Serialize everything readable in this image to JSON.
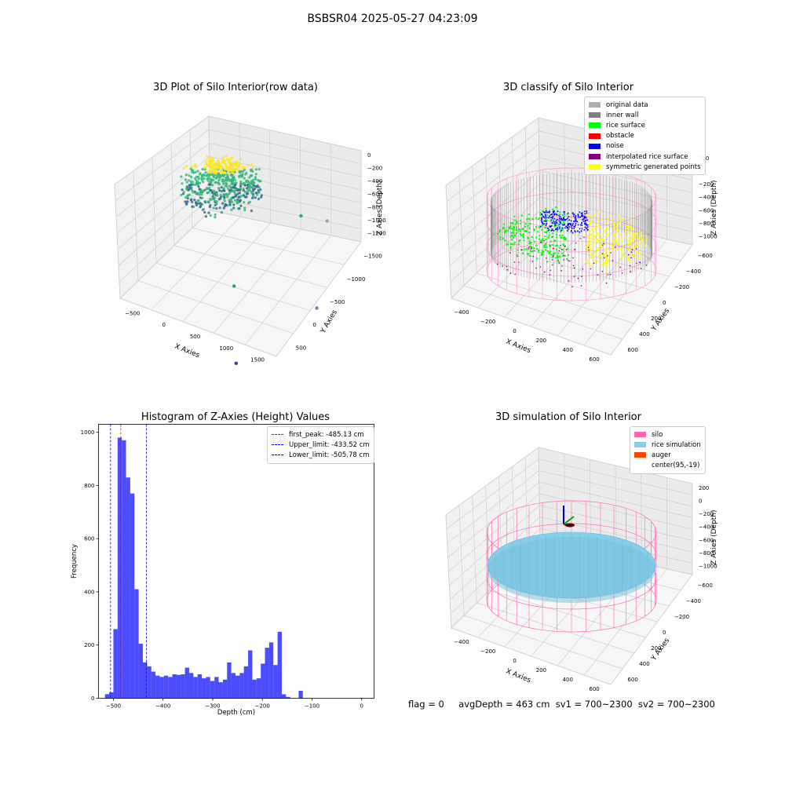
{
  "suptitle": "BSBSR04 2025-05-27 04:23:09",
  "footer": {
    "flag": "flag = 0",
    "avg": "avgDepth = 463 cm",
    "sv1": "sv1 = 700~2300",
    "sv2": "sv2 = 700~2300"
  },
  "chart_data": [
    {
      "type": "scatter",
      "title": "3D Plot of Silo Interior(row data)",
      "xlabel": "X Axies",
      "ylabel": "Y Axies",
      "zlabel": "Z Axies (Depth)",
      "x_ticks": [
        "−500",
        "0",
        "500",
        "1000",
        "1500"
      ],
      "y_ticks": [
        "500",
        "0",
        "−500",
        "−1000",
        "−1500"
      ],
      "z_ticks": [
        "0",
        "−200",
        "−400",
        "−600",
        "−800",
        "−1000",
        "−1200"
      ],
      "colormap": [
        "#440154",
        "#31688e",
        "#35b779",
        "#fde725"
      ],
      "outliers": [
        {
          "x": 1300,
          "y": 600,
          "z": -600,
          "color": "#2ca58d"
        },
        {
          "x": 1550,
          "y": 700,
          "z": -650,
          "color": "#a09cb8"
        },
        {
          "x": 900,
          "y": -200,
          "z": -900,
          "color": "#2a9d8f"
        },
        {
          "x": 1700,
          "y": 100,
          "z": -1100,
          "color": "#8a6fa6"
        },
        {
          "x": 1100,
          "y": -600,
          "z": -1350,
          "color": "#3b3b8f"
        }
      ]
    },
    {
      "type": "scatter",
      "title": "3D classify of Silo Interior",
      "xlabel": "X Axies",
      "ylabel": "Y Axies",
      "zlabel": "Z Axies (Depth)",
      "x_ticks": [
        "−400",
        "−200",
        "0",
        "200",
        "400",
        "600"
      ],
      "y_ticks": [
        "600",
        "400",
        "200",
        "0",
        "−200",
        "−400",
        "−600"
      ],
      "z_ticks": [
        "200",
        "0",
        "−200",
        "−400",
        "−600",
        "−800",
        "−1000"
      ],
      "legend": [
        {
          "label": "original data",
          "color": "#b0b0b0"
        },
        {
          "label": "inner wall",
          "color": "#808080"
        },
        {
          "label": "rice surface",
          "color": "#00ff00"
        },
        {
          "label": "obstacle",
          "color": "#ff0000"
        },
        {
          "label": "noise",
          "color": "#0000ff"
        },
        {
          "label": "interpolated rice surface",
          "color": "#800080"
        },
        {
          "label": "symmetric generated points",
          "color": "#ffff00"
        }
      ]
    },
    {
      "type": "bar",
      "title": "Histogram of Z-Axies (Height) Values",
      "xlabel": "Depth (cm)",
      "ylabel": "Frequency",
      "xlim": [
        -530,
        25
      ],
      "ylim": [
        0,
        1030
      ],
      "x_ticks": [
        -500,
        -400,
        -300,
        -200,
        -100,
        0
      ],
      "x_tick_labels": [
        "−500",
        "−400",
        "−300",
        "−200",
        "−100",
        "0"
      ],
      "y_ticks": [
        0,
        200,
        400,
        600,
        800,
        1000
      ],
      "bar_color": "#0000ff",
      "bin_start": -517,
      "bin_width": 8.48,
      "values": [
        15,
        22,
        260,
        980,
        970,
        830,
        770,
        410,
        205,
        135,
        120,
        100,
        85,
        80,
        85,
        80,
        90,
        88,
        90,
        115,
        95,
        80,
        90,
        75,
        80,
        65,
        80,
        60,
        70,
        135,
        95,
        85,
        95,
        120,
        180,
        70,
        75,
        130,
        190,
        210,
        125,
        250,
        15,
        5,
        0,
        0,
        28
      ],
      "legend": [
        {
          "label": "first_peak: -485.13 cm",
          "color": "#ff0000",
          "x": -485.13
        },
        {
          "label": "Upper_limit: -433.52 cm",
          "color": "#0000cc",
          "x": -433.52
        },
        {
          "label": "Lower_limit: -505.78 cm",
          "color": "#0000cc",
          "x": -505.78
        }
      ]
    },
    {
      "type": "scatter",
      "title": "3D simulation of Silo Interior",
      "xlabel": "X Axies",
      "ylabel": "Y Axies",
      "zlabel": "Z Axies (Depth)",
      "x_ticks": [
        "−400",
        "−200",
        "0",
        "200",
        "400",
        "600"
      ],
      "y_ticks": [
        "600",
        "400",
        "200",
        "0",
        "−200",
        "−400",
        "−600"
      ],
      "z_ticks": [
        "200",
        "0",
        "−200",
        "−400",
        "−600",
        "−800",
        "−1000"
      ],
      "legend": [
        {
          "label": "silo",
          "color": "#ff69b4"
        },
        {
          "label": "rice simulation",
          "color": "#87ceeb"
        },
        {
          "label": "auger",
          "color": "#ff4500"
        },
        {
          "label": "center(95,-19)",
          "color": "transparent"
        }
      ]
    }
  ]
}
